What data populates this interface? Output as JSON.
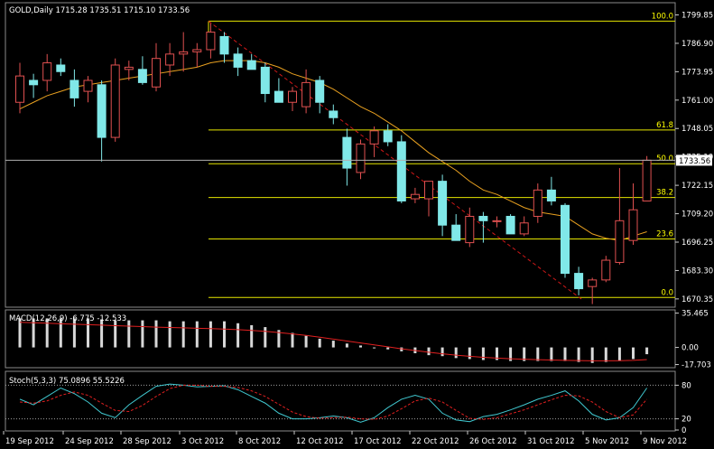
{
  "chart_data": {
    "type": "candlestick",
    "header": "GOLD,Daily  1715.28 1735.51 1715.10 1733.56",
    "price_axis": {
      "ticks": [
        "1799.85",
        "1786.90",
        "1773.95",
        "1761.00",
        "1748.05",
        "1735.10",
        "1722.15",
        "1709.20",
        "1696.25",
        "1683.30",
        "1670.35"
      ],
      "range": [
        1667.0,
        1805.0
      ],
      "current_price": "1733.56"
    },
    "dates_axis": [
      "19 Sep 2012",
      "24 Sep 2012",
      "28 Sep 2012",
      "3 Oct 2012",
      "8 Oct 2012",
      "12 Oct 2012",
      "17 Oct 2012",
      "22 Oct 2012",
      "26 Oct 2012",
      "31 Oct 2012",
      "5 Nov 2012",
      "9 Nov 2012"
    ],
    "fibonacci": [
      {
        "level": "100.0",
        "price": 1797.0
      },
      {
        "level": "61.8",
        "price": 1747.4
      },
      {
        "level": "50.0",
        "price": 1732.0
      },
      {
        "level": "38.2",
        "price": 1716.6
      },
      {
        "level": "23.6",
        "price": 1697.7
      },
      {
        "level": "0.0",
        "price": 1671.0
      }
    ],
    "candles": [
      {
        "o": 1760,
        "h": 1778,
        "l": 1755,
        "c": 1772
      },
      {
        "o": 1770,
        "h": 1773,
        "l": 1762,
        "c": 1768
      },
      {
        "o": 1770,
        "h": 1782,
        "l": 1765,
        "c": 1778
      },
      {
        "o": 1777,
        "h": 1780,
        "l": 1772,
        "c": 1774
      },
      {
        "o": 1770,
        "h": 1775,
        "l": 1758,
        "c": 1762
      },
      {
        "o": 1765,
        "h": 1772,
        "l": 1760,
        "c": 1770
      },
      {
        "o": 1768,
        "h": 1770,
        "l": 1733,
        "c": 1744
      },
      {
        "o": 1744,
        "h": 1780,
        "l": 1742,
        "c": 1777
      },
      {
        "o": 1775,
        "h": 1779,
        "l": 1770,
        "c": 1776
      },
      {
        "o": 1775,
        "h": 1781,
        "l": 1768,
        "c": 1769
      },
      {
        "o": 1767,
        "h": 1787,
        "l": 1765,
        "c": 1780
      },
      {
        "o": 1777,
        "h": 1787,
        "l": 1772,
        "c": 1782
      },
      {
        "o": 1782,
        "h": 1792,
        "l": 1774,
        "c": 1783
      },
      {
        "o": 1783,
        "h": 1787,
        "l": 1776,
        "c": 1784
      },
      {
        "o": 1784,
        "h": 1796,
        "l": 1780,
        "c": 1792
      },
      {
        "o": 1790,
        "h": 1792,
        "l": 1778,
        "c": 1782
      },
      {
        "o": 1782,
        "h": 1785,
        "l": 1772,
        "c": 1776
      },
      {
        "o": 1779,
        "h": 1782,
        "l": 1775,
        "c": 1775
      },
      {
        "o": 1776,
        "h": 1778,
        "l": 1760,
        "c": 1764
      },
      {
        "o": 1765,
        "h": 1771,
        "l": 1760,
        "c": 1760
      },
      {
        "o": 1760,
        "h": 1767,
        "l": 1756,
        "c": 1765
      },
      {
        "o": 1758,
        "h": 1775,
        "l": 1755,
        "c": 1769
      },
      {
        "o": 1770,
        "h": 1772,
        "l": 1755,
        "c": 1760
      },
      {
        "o": 1756,
        "h": 1759,
        "l": 1750,
        "c": 1753
      },
      {
        "o": 1744,
        "h": 1748,
        "l": 1722,
        "c": 1730
      },
      {
        "o": 1728,
        "h": 1743,
        "l": 1725,
        "c": 1741
      },
      {
        "o": 1741,
        "h": 1749,
        "l": 1735,
        "c": 1747
      },
      {
        "o": 1747,
        "h": 1750,
        "l": 1740,
        "c": 1742
      },
      {
        "o": 1742,
        "h": 1745,
        "l": 1714,
        "c": 1715
      },
      {
        "o": 1716,
        "h": 1721,
        "l": 1714,
        "c": 1718
      },
      {
        "o": 1716,
        "h": 1724,
        "l": 1708,
        "c": 1724
      },
      {
        "o": 1724,
        "h": 1727,
        "l": 1699,
        "c": 1704
      },
      {
        "o": 1704,
        "h": 1709,
        "l": 1697,
        "c": 1697
      },
      {
        "o": 1696,
        "h": 1712,
        "l": 1694,
        "c": 1708
      },
      {
        "o": 1708,
        "h": 1710,
        "l": 1696,
        "c": 1706
      },
      {
        "o": 1706,
        "h": 1708,
        "l": 1703,
        "c": 1706
      },
      {
        "o": 1708,
        "h": 1709,
        "l": 1700,
        "c": 1700
      },
      {
        "o": 1700,
        "h": 1708,
        "l": 1699,
        "c": 1705
      },
      {
        "o": 1708,
        "h": 1723,
        "l": 1705,
        "c": 1720
      },
      {
        "o": 1720,
        "h": 1726,
        "l": 1713,
        "c": 1715
      },
      {
        "o": 1713,
        "h": 1714,
        "l": 1680,
        "c": 1682
      },
      {
        "o": 1682,
        "h": 1685,
        "l": 1672,
        "c": 1675
      },
      {
        "o": 1676,
        "h": 1680,
        "l": 1668,
        "c": 1679
      },
      {
        "o": 1679,
        "h": 1690,
        "l": 1678,
        "c": 1688
      },
      {
        "o": 1687,
        "h": 1730,
        "l": 1686,
        "c": 1706
      },
      {
        "o": 1697,
        "h": 1723,
        "l": 1695,
        "c": 1711
      },
      {
        "o": 1715,
        "h": 1735.5,
        "l": 1715,
        "c": 1733.6
      }
    ],
    "moving_average": [
      1757,
      1760,
      1763,
      1765,
      1767,
      1768,
      1769,
      1770,
      1771,
      1772,
      1773,
      1774,
      1775,
      1776,
      1778,
      1779,
      1779,
      1779,
      1778,
      1776,
      1773,
      1771,
      1769,
      1766,
      1762,
      1758,
      1755,
      1751,
      1747,
      1742,
      1737,
      1733,
      1729,
      1724,
      1720,
      1718,
      1715,
      1712,
      1710,
      1709,
      1708,
      1704,
      1700,
      1698,
      1697,
      1699,
      1701
    ],
    "macd": {
      "label": "MACD(12,26,9) -6.775 -12.533",
      "ticks": [
        "35.465",
        "0.00",
        "-17.703"
      ],
      "range": [
        -20,
        36
      ],
      "histogram": [
        30,
        30,
        30,
        30,
        30,
        30,
        29,
        28,
        28,
        28,
        28,
        27,
        27,
        27,
        27,
        27,
        25,
        23,
        21,
        18,
        15,
        12,
        9,
        7,
        4,
        2,
        0,
        -2,
        -4,
        -6,
        -8,
        -9,
        -11,
        -12,
        -13,
        -13,
        -14,
        -14,
        -14,
        -14,
        -14,
        -15,
        -16,
        -15,
        -14,
        -12,
        -7
      ],
      "signal": [
        26,
        25.5,
        25,
        24.5,
        24,
        23.5,
        23,
        22.5,
        22,
        21.5,
        21,
        20.6,
        20.2,
        19.8,
        19.4,
        19,
        18.4,
        17.6,
        16.6,
        15.4,
        14,
        12.4,
        10.6,
        8.6,
        6.6,
        4.6,
        2.6,
        0.6,
        -1.4,
        -3.2,
        -5,
        -6.6,
        -8,
        -9.2,
        -10.2,
        -11,
        -11.7,
        -12.2,
        -12.6,
        -13,
        -13.3,
        -13.6,
        -13.8,
        -13.8,
        -13.7,
        -13.4,
        -12.5
      ]
    },
    "stoch": {
      "label": "Stoch(5,3,3) 75.0896 55.5226",
      "ticks": [
        "80",
        "20",
        "0"
      ],
      "range": [
        0,
        100
      ],
      "main": [
        55,
        45,
        60,
        75,
        65,
        50,
        30,
        22,
        45,
        62,
        78,
        82,
        80,
        77,
        78,
        79,
        72,
        60,
        48,
        30,
        20,
        20,
        22,
        25,
        22,
        14,
        22,
        40,
        55,
        62,
        55,
        30,
        18,
        15,
        24,
        28,
        36,
        45,
        55,
        62,
        70,
        52,
        28,
        18,
        22,
        40,
        75
      ],
      "signal": [
        50,
        48,
        52,
        62,
        68,
        62,
        48,
        35,
        33,
        44,
        60,
        74,
        80,
        80,
        78,
        78,
        76,
        70,
        60,
        46,
        32,
        24,
        21,
        22,
        23,
        20,
        19,
        25,
        38,
        52,
        57,
        50,
        35,
        21,
        19,
        22,
        29,
        36,
        45,
        54,
        62,
        61,
        50,
        33,
        22,
        27,
        55
      ]
    }
  }
}
